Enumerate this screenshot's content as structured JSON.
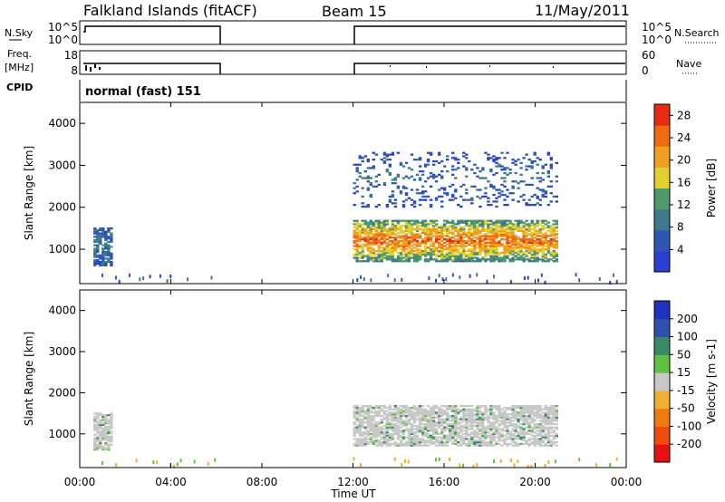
{
  "header": {
    "station": "Falkland Islands (fitACF)",
    "beam": "Beam 15",
    "date": "11/May/2011"
  },
  "strip_labels": {
    "nsky": "N.Sky",
    "freq_line1": "Freq.",
    "freq_line2": "[MHz]",
    "cpid": "CPID",
    "nsearch": "N.Search",
    "nave": "Nave",
    "cpid_text": "normal (fast) 151"
  },
  "strip_ticks": {
    "noise_left": [
      "10^5",
      "10^0"
    ],
    "noise_right": [
      "10^5",
      "10^0"
    ],
    "freq_left": [
      "18",
      "8"
    ],
    "nave_right": [
      "60",
      "0"
    ]
  },
  "colors": {
    "power": [
      "#2a3fd0",
      "#2f56b5",
      "#3f7a8a",
      "#4f9a6a",
      "#e0d030",
      "#f0a020",
      "#f06a10",
      "#e82a10"
    ],
    "velocity": [
      "#e81010",
      "#f04a10",
      "#f07a10",
      "#f0b030",
      "#c8c8c8",
      "#60c040",
      "#3a8a6a",
      "#3050b0",
      "#2030c0"
    ]
  },
  "chart_data": [
    {
      "type": "heatmap",
      "panel": "power",
      "xlabel": "Time UT",
      "ylabel": "Slant Range [km]",
      "x_ticks": [
        "00:00",
        "04:00",
        "08:00",
        "12:00",
        "16:00",
        "20:00",
        "00:00"
      ],
      "y_ticks": [
        "1000",
        "2000",
        "3000",
        "4000"
      ],
      "xlim": [
        0,
        24
      ],
      "ylim": [
        180,
        4500
      ],
      "colorbar": {
        "label": "Power [dB]",
        "ticks": [
          "4",
          "8",
          "12",
          "16",
          "20",
          "24",
          "28"
        ],
        "range": [
          0,
          30
        ]
      },
      "data_gaps_hours": [
        [
          6,
          12
        ]
      ],
      "features": [
        {
          "name": "near-range echoes",
          "t_start": 0.6,
          "t_end": 1.4,
          "range_km": [
            600,
            1500
          ],
          "level": 8
        },
        {
          "name": "main scatter band",
          "t_start": 12.0,
          "t_end": 21.0,
          "range_km": [
            700,
            1700
          ],
          "level": 24
        },
        {
          "name": "high-range scatter",
          "t_start": 12.0,
          "t_end": 21.0,
          "range_km": [
            2000,
            3300
          ],
          "level": 6
        }
      ]
    },
    {
      "type": "heatmap",
      "panel": "velocity",
      "xlabel": "Time UT",
      "ylabel": "Slant Range [km]",
      "x_ticks": [
        "00:00",
        "04:00",
        "08:00",
        "12:00",
        "16:00",
        "20:00",
        "00:00"
      ],
      "y_ticks": [
        "1000",
        "2000",
        "3000",
        "4000"
      ],
      "xlim": [
        0,
        24
      ],
      "ylim": [
        180,
        4500
      ],
      "colorbar": {
        "label": "Velocity [m s-1]",
        "ticks": [
          "200",
          "100",
          "50",
          "15",
          "-15",
          "-50",
          "-100",
          "-200"
        ],
        "range": [
          -250,
          250
        ]
      },
      "data_gaps_hours": [
        [
          6,
          12
        ]
      ],
      "features": [
        {
          "name": "near-range echoes",
          "t_start": 0.6,
          "t_end": 1.4,
          "range_km": [
            600,
            1500
          ],
          "level": 0
        },
        {
          "name": "main scatter band",
          "t_start": 12.0,
          "t_end": 21.0,
          "range_km": [
            700,
            1700
          ],
          "level": 0
        }
      ]
    }
  ]
}
